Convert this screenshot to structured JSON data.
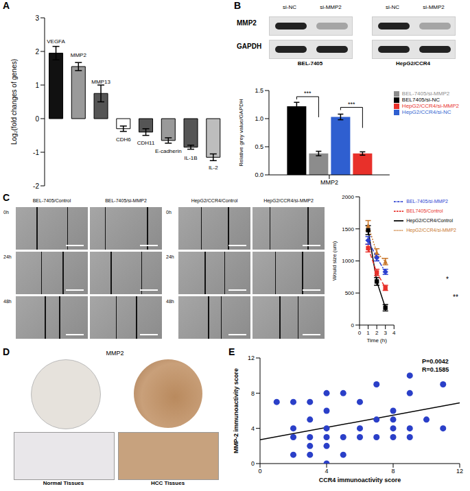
{
  "chart_data": [
    {
      "type": "bar",
      "y_label": "Log₂(fold changes of genes)",
      "categories": [
        "VEGFA",
        "MMP2",
        "MMP13",
        "CDH6",
        "CDH11",
        "E-cadherin",
        "IL-1B",
        "IL-2"
      ],
      "values": [
        1.95,
        1.55,
        0.75,
        -0.3,
        -0.4,
        -0.65,
        -0.85,
        -1.15
      ],
      "errors": [
        0.2,
        0.12,
        0.25,
        0.08,
        0.1,
        0.08,
        0.06,
        0.1
      ],
      "colors": [
        "#111111",
        "#9a9a9a",
        "#555555",
        "#ffffff",
        "#555555",
        "#9a9a9a",
        "#555555",
        "#bdbdbd"
      ],
      "ylim": [
        -2,
        3
      ],
      "yticks": [
        -2,
        -1,
        0,
        1,
        2,
        3
      ],
      "tick_labels": "y"
    },
    {
      "type": "bar",
      "y_label": "Relative grey value/GAPDH",
      "categories": [
        "MMP2"
      ],
      "series": [
        {
          "name": "BEL7405/si-NC",
          "color": "#000000",
          "values": [
            1.22
          ],
          "errors": [
            0.07
          ]
        },
        {
          "name": "BEL-7405/si-MMP2",
          "color": "#8c8c8c",
          "values": [
            0.38
          ],
          "errors": [
            0.04
          ]
        },
        {
          "name": "HepG2/CCR4/si-NC",
          "color": "#2f5fd0",
          "values": [
            1.03
          ],
          "errors": [
            0.05
          ]
        },
        {
          "name": "HepG2/CCR4/si-MMP2",
          "color": "#e8302a",
          "values": [
            0.38
          ],
          "errors": [
            0.03
          ]
        }
      ],
      "significance": [
        "***",
        "***"
      ],
      "ylim": [
        0,
        1.5
      ],
      "yticks": [
        {
          "value": 0,
          "label": "0.0"
        },
        {
          "value": 0.5,
          "label": "0.5"
        },
        {
          "value": 1,
          "label": "1.0"
        },
        {
          "value": 1.5,
          "label": "1.5"
        }
      ],
      "legend": "upper right"
    },
    {
      "type": "line",
      "x_label": "Time (h)",
      "y_label": "Would size (um)",
      "x": [
        1,
        2,
        3
      ],
      "series": [
        {
          "name": "HepG2/CCR4/Control",
          "color": "#000000",
          "values": [
            1480,
            680,
            270
          ],
          "errors": [
            70,
            60,
            50
          ],
          "line_style": "solid",
          "marker": "square"
        },
        {
          "name": "HepG2/CCR4/si-MMP2",
          "color": "#c8762a",
          "values": [
            1550,
            1130,
            990
          ],
          "errors": [
            80,
            60,
            50
          ],
          "line_style": "dotted",
          "marker": "triangle"
        },
        {
          "name": "BEL7405/Control",
          "color": "#e8302a",
          "values": [
            1200,
            820,
            580
          ],
          "errors": [
            60,
            50,
            40
          ],
          "line_style": "dashed",
          "marker": "square"
        },
        {
          "name": "BEL-7405/si-MMP2",
          "color": "#2a3fd0",
          "values": [
            1320,
            1050,
            830
          ],
          "errors": [
            60,
            50,
            40
          ],
          "line_style": "dashdot",
          "marker": "diamond"
        }
      ],
      "annotations": [
        "*",
        "**"
      ],
      "xlim": [
        0,
        4
      ],
      "xticks": [
        0,
        1,
        2,
        3,
        4
      ],
      "ylim": [
        0,
        2000
      ],
      "yticks": [
        0,
        500,
        1000,
        1500,
        2000
      ],
      "legend": "upper right"
    },
    {
      "type": "scatter",
      "x_label": "CCR4 immunoactivity score",
      "y_label": "MMP-2 immunoactivity score",
      "x": [
        1,
        2,
        2,
        2,
        2,
        3,
        3,
        3,
        3,
        3,
        4,
        4,
        4,
        4,
        4,
        4,
        5,
        5,
        5,
        6,
        6,
        6,
        7,
        7,
        7,
        8,
        8,
        8,
        8,
        9,
        9,
        9,
        9,
        10,
        11,
        11
      ],
      "values": [
        7,
        7,
        4,
        3,
        1,
        7,
        5,
        3,
        2,
        1,
        8,
        6,
        4,
        3,
        2,
        0,
        8,
        3,
        1,
        3,
        4,
        7,
        9,
        5,
        3,
        3,
        5,
        6,
        4,
        10,
        8,
        3,
        4,
        5,
        9,
        4
      ],
      "color": "#2a3fc8",
      "fit_line": {
        "x": [
          0,
          12
        ],
        "values": [
          2.7,
          6.9
        ]
      },
      "annotations": [
        "P=0.0042",
        "R=0.1585"
      ],
      "xlim": [
        0,
        12
      ],
      "xticks": [
        0,
        4,
        8,
        12
      ],
      "ylim": [
        0,
        12
      ],
      "yticks": [
        0,
        4,
        8,
        12
      ]
    }
  ],
  "figure": {
    "panel_labels": [
      "A",
      "B",
      "C",
      "D",
      "E"
    ],
    "blot": {
      "lanes": [
        "si-NC",
        "si-MMP2"
      ],
      "rows": [
        "MMP2",
        "GAPDH"
      ],
      "cell_lines": [
        "BEL-7405",
        "HepG2/CCR4"
      ]
    },
    "scratch": {
      "columns": [
        "BEL-7405/Control",
        "BEL-7405/si-MMP2",
        "HepG2/CCR4/Control",
        "HepG2/CCR4/si-MMP2"
      ],
      "rows": [
        "0h",
        "24h",
        "48h"
      ]
    },
    "ihc": {
      "title": "MMP2",
      "captions": [
        "Normal Tissues",
        "HCC Tissues"
      ]
    }
  }
}
